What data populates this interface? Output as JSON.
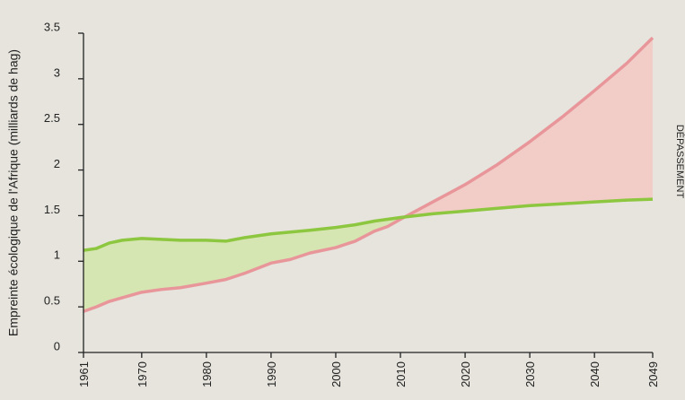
{
  "chart_data": {
    "type": "line",
    "ylabel": "Empreinte écologique de l'Afrique (milliards de hag)",
    "annotation": "DÉPASSEMENT",
    "x": [
      1961,
      1963,
      1965,
      1967,
      1970,
      1973,
      1976,
      1980,
      1983,
      1986,
      1990,
      1993,
      1996,
      2000,
      2003,
      2006,
      2008,
      2010,
      2015,
      2020,
      2025,
      2030,
      2035,
      2040,
      2045,
      2049
    ],
    "series": [
      {
        "color": "#8dc63f",
        "fill": "#d6e6b2",
        "values": [
          1.12,
          1.14,
          1.2,
          1.23,
          1.25,
          1.24,
          1.23,
          1.23,
          1.22,
          1.26,
          1.3,
          1.32,
          1.34,
          1.37,
          1.4,
          1.44,
          1.46,
          1.48,
          1.52,
          1.55,
          1.58,
          1.61,
          1.63,
          1.65,
          1.67,
          1.68
        ]
      },
      {
        "color": "#e8969a",
        "fill": "#f2cdc8",
        "values": [
          0.45,
          0.5,
          0.56,
          0.6,
          0.66,
          0.69,
          0.71,
          0.76,
          0.8,
          0.87,
          0.98,
          1.02,
          1.09,
          1.15,
          1.22,
          1.33,
          1.38,
          1.46,
          1.65,
          1.84,
          2.06,
          2.31,
          2.58,
          2.87,
          3.17,
          3.45
        ]
      }
    ],
    "xlim": [
      1961,
      2049
    ],
    "xticks": [
      1961,
      1970,
      1980,
      1990,
      2000,
      2010,
      2020,
      2030,
      2040,
      2049
    ],
    "ylim": [
      0,
      3.5
    ],
    "yticks": [
      0,
      0.5,
      1,
      1.5,
      2,
      2.5,
      3,
      3.5
    ]
  }
}
